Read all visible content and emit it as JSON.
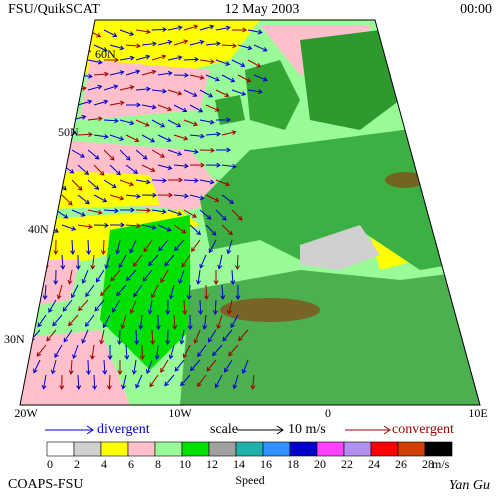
{
  "header": {
    "left": "FSU/QuikSCAT",
    "center": "12 May 2003",
    "right": "00:00"
  },
  "lat_labels": [
    "60N",
    "50N",
    "40N",
    "30N"
  ],
  "lon_labels": [
    "20W",
    "10W",
    "0",
    "10E"
  ],
  "legend": {
    "divergent": "divergent",
    "scale": "scale",
    "scale_value": "10 m/s",
    "convergent": "convergent"
  },
  "colorbar": {
    "labels": [
      "0",
      "2",
      "4",
      "6",
      "8",
      "10",
      "12",
      "14",
      "16",
      "18",
      "20",
      "22",
      "24",
      "26",
      "28"
    ],
    "colors": [
      "#ffffff",
      "#d0d0d0",
      "#ffff00",
      "#ffc0cb",
      "#98fb98",
      "#00e000",
      "#a0a0a0",
      "#20b2aa",
      "#3090ff",
      "#0000cd",
      "#ff40ff",
      "#b090f0",
      "#ff0000",
      "#d04000",
      "#000000"
    ],
    "unit": "m/s",
    "title": "Speed"
  },
  "footer": {
    "left": "COAPS-FSU",
    "right": "Yan Gu"
  }
}
